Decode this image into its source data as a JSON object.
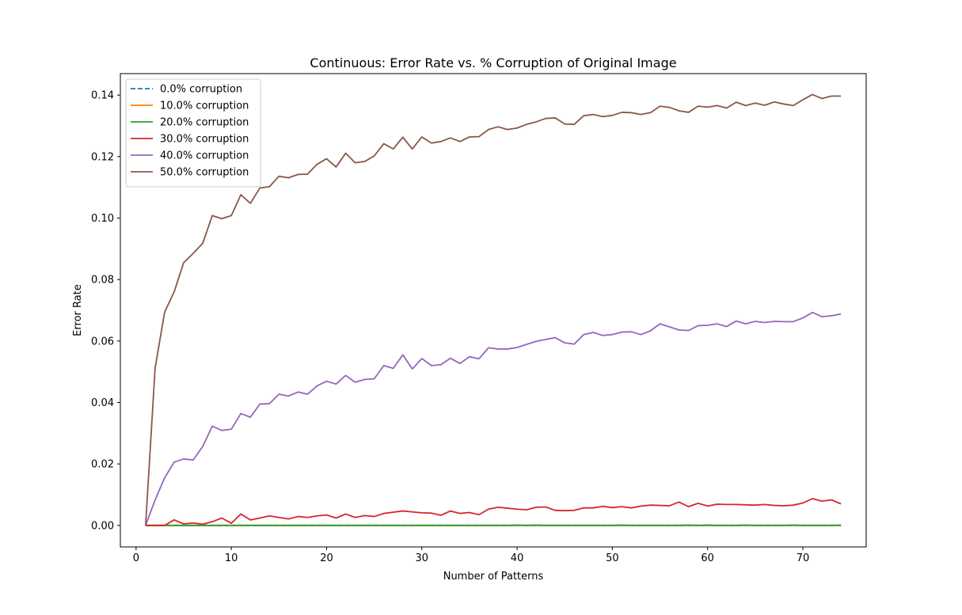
{
  "chart_data": {
    "type": "line",
    "title": "Continuous: Error Rate vs. % Corruption of Original Image",
    "xlabel": "Number of Patterns",
    "ylabel": "Error Rate",
    "xlim": [
      -1.65,
      76.65
    ],
    "ylim": [
      -0.007,
      0.147
    ],
    "xticks": [
      0,
      10,
      20,
      30,
      40,
      50,
      60,
      70
    ],
    "xtick_labels": [
      "0",
      "10",
      "20",
      "30",
      "40",
      "50",
      "60",
      "70"
    ],
    "yticks": [
      0.0,
      0.02,
      0.04,
      0.06,
      0.08,
      0.1,
      0.12,
      0.14
    ],
    "ytick_labels": [
      "0.00",
      "0.02",
      "0.04",
      "0.06",
      "0.08",
      "0.10",
      "0.12",
      "0.14"
    ],
    "grid": false,
    "legend_position": "top-left",
    "x": [
      1,
      2,
      3,
      4,
      5,
      6,
      7,
      8,
      9,
      10,
      11,
      12,
      13,
      14,
      15,
      16,
      17,
      18,
      19,
      20,
      21,
      22,
      23,
      24,
      25,
      26,
      27,
      28,
      29,
      30,
      31,
      32,
      33,
      34,
      35,
      36,
      37,
      38,
      39,
      40,
      41,
      42,
      43,
      44,
      45,
      46,
      47,
      48,
      49,
      50,
      51,
      52,
      53,
      54,
      55,
      56,
      57,
      58,
      59,
      60,
      61,
      62,
      63,
      64,
      65,
      66,
      67,
      68,
      69,
      70,
      71,
      72,
      73,
      74
    ],
    "series": [
      {
        "name": "0.0% corruption",
        "color": "#1f77b4",
        "dash": "dashed",
        "values": [
          0,
          0,
          0,
          0,
          0,
          0,
          0,
          0,
          0,
          0,
          0,
          0,
          0,
          0,
          0,
          0,
          0,
          0,
          0,
          0,
          0,
          0,
          0,
          0,
          0,
          0,
          0,
          0,
          0,
          0,
          0,
          0,
          0,
          0,
          0,
          0,
          0,
          0,
          0,
          0,
          0,
          0,
          0,
          0,
          0,
          0,
          0,
          0,
          0,
          0,
          0,
          0,
          0,
          0,
          0,
          0,
          0,
          0,
          0,
          0,
          0,
          0,
          0,
          0,
          0,
          0,
          0,
          0,
          0,
          0,
          0,
          0,
          0,
          0
        ]
      },
      {
        "name": "10.0% corruption",
        "color": "#ff7f0e",
        "dash": "solid",
        "values": [
          0,
          0,
          0,
          0,
          0,
          0,
          0,
          0,
          0,
          0,
          0,
          0,
          0,
          0,
          0,
          0,
          0,
          0,
          0,
          0,
          0,
          0,
          0,
          0,
          0,
          0,
          0,
          0,
          0,
          0,
          0,
          0,
          0,
          0,
          0,
          0,
          0,
          0,
          0,
          0,
          0,
          0,
          0,
          0,
          0,
          0,
          0,
          0,
          0,
          0,
          0,
          0,
          0,
          0,
          0,
          0,
          0,
          0,
          0,
          0,
          0,
          0,
          0,
          0,
          0,
          0,
          0,
          0,
          0,
          0,
          0,
          0,
          0,
          0
        ]
      },
      {
        "name": "20.0% corruption",
        "color": "#2ca02c",
        "dash": "solid",
        "values": [
          0,
          0,
          0,
          0,
          0,
          0,
          0,
          0,
          0,
          0,
          0,
          0,
          0,
          0,
          0,
          0,
          0,
          0,
          0,
          0,
          0,
          0,
          0,
          0,
          0,
          0,
          0,
          0,
          0,
          0,
          0,
          0,
          0,
          0,
          0,
          0,
          0,
          0,
          0,
          0.0001,
          0,
          0.0001,
          0,
          0,
          0,
          0,
          0,
          0,
          0,
          0,
          0.0001,
          0,
          0,
          0,
          0,
          0,
          0,
          0.0001,
          0,
          0.0001,
          0,
          0,
          0,
          0.0001,
          0,
          0,
          0,
          0,
          0.0001,
          0,
          0,
          0,
          0,
          0.0001
        ]
      },
      {
        "name": "30.0% corruption",
        "color": "#d62728",
        "dash": "solid",
        "values": [
          0,
          0,
          0,
          0.0018,
          0.0005,
          0.0008,
          0.0004,
          0.0012,
          0.0024,
          0.0007,
          0.0037,
          0.0018,
          0.0024,
          0.0031,
          0.0026,
          0.0021,
          0.0029,
          0.0026,
          0.0031,
          0.0034,
          0.0024,
          0.0037,
          0.0026,
          0.0032,
          0.0029,
          0.0039,
          0.0043,
          0.0047,
          0.0044,
          0.0041,
          0.004,
          0.0033,
          0.0047,
          0.0039,
          0.0042,
          0.0035,
          0.0053,
          0.0059,
          0.0056,
          0.0053,
          0.0051,
          0.0059,
          0.006,
          0.0049,
          0.0048,
          0.0049,
          0.0057,
          0.0057,
          0.0062,
          0.0058,
          0.0061,
          0.0057,
          0.0063,
          0.0066,
          0.0065,
          0.0064,
          0.0076,
          0.0061,
          0.0072,
          0.0063,
          0.0069,
          0.0068,
          0.0068,
          0.0067,
          0.0066,
          0.0068,
          0.0065,
          0.0064,
          0.0066,
          0.0073,
          0.0087,
          0.0079,
          0.0083,
          0.007
        ]
      },
      {
        "name": "40.0% corruption",
        "color": "#9467bd",
        "dash": "solid",
        "values": [
          0,
          0.0083,
          0.0155,
          0.0206,
          0.0216,
          0.0213,
          0.0257,
          0.0323,
          0.0309,
          0.0313,
          0.0364,
          0.0352,
          0.0395,
          0.0396,
          0.0427,
          0.0421,
          0.0434,
          0.0427,
          0.0454,
          0.0469,
          0.046,
          0.0488,
          0.0466,
          0.0475,
          0.0477,
          0.052,
          0.0511,
          0.0555,
          0.0509,
          0.0543,
          0.052,
          0.0523,
          0.0544,
          0.0527,
          0.0549,
          0.0542,
          0.0578,
          0.0574,
          0.0574,
          0.0579,
          0.0589,
          0.0599,
          0.0605,
          0.0611,
          0.0594,
          0.059,
          0.0621,
          0.0628,
          0.0618,
          0.0621,
          0.0629,
          0.063,
          0.0621,
          0.0633,
          0.0656,
          0.0646,
          0.0636,
          0.0634,
          0.065,
          0.0651,
          0.0656,
          0.0647,
          0.0665,
          0.0656,
          0.0664,
          0.066,
          0.0664,
          0.0663,
          0.0663,
          0.0675,
          0.0693,
          0.0679,
          0.0682,
          0.0688
        ]
      },
      {
        "name": "50.0% corruption",
        "color": "#8c564b",
        "dash": "solid",
        "values": [
          0,
          0.0512,
          0.0694,
          0.076,
          0.0855,
          0.0885,
          0.0918,
          0.1008,
          0.0998,
          0.1008,
          0.1076,
          0.1048,
          0.1098,
          0.1102,
          0.1136,
          0.1131,
          0.1142,
          0.1143,
          0.1175,
          0.1193,
          0.1166,
          0.1211,
          0.118,
          0.1184,
          0.1202,
          0.1242,
          0.1225,
          0.1263,
          0.1225,
          0.1264,
          0.1244,
          0.1249,
          0.1261,
          0.1249,
          0.1264,
          0.1265,
          0.1288,
          0.1297,
          0.1288,
          0.1293,
          0.1305,
          0.1313,
          0.1324,
          0.1326,
          0.1306,
          0.1305,
          0.1333,
          0.1337,
          0.133,
          0.1334,
          0.1344,
          0.1343,
          0.1337,
          0.1343,
          0.1364,
          0.136,
          0.1349,
          0.1344,
          0.1364,
          0.1361,
          0.1366,
          0.1358,
          0.1377,
          0.1366,
          0.1374,
          0.1367,
          0.1378,
          0.1371,
          0.1366,
          0.1385,
          0.1402,
          0.1389,
          0.1397,
          0.1397
        ]
      }
    ]
  }
}
